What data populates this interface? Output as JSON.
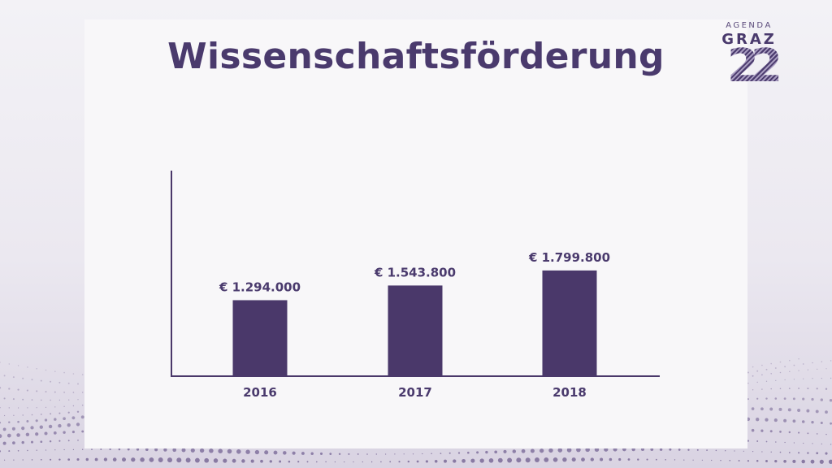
{
  "slide": {
    "title": "Wissenschaftsförderung"
  },
  "logo": {
    "line1": "AGENDA",
    "line2": "GRAZ",
    "line3": "22"
  },
  "colors": {
    "accent": "#4a386a",
    "title": "#4a3a6d"
  },
  "chart_data": {
    "type": "bar",
    "title": "",
    "xlabel": "",
    "ylabel": "",
    "categories": [
      "2016",
      "2017",
      "2018"
    ],
    "values": [
      1294000,
      1543800,
      1799800
    ],
    "value_labels": [
      "€ 1.294.000",
      "€ 1.543.800",
      "€ 1.799.800"
    ],
    "ylim": [
      0,
      3500000
    ],
    "grid": false,
    "legend": "none"
  }
}
